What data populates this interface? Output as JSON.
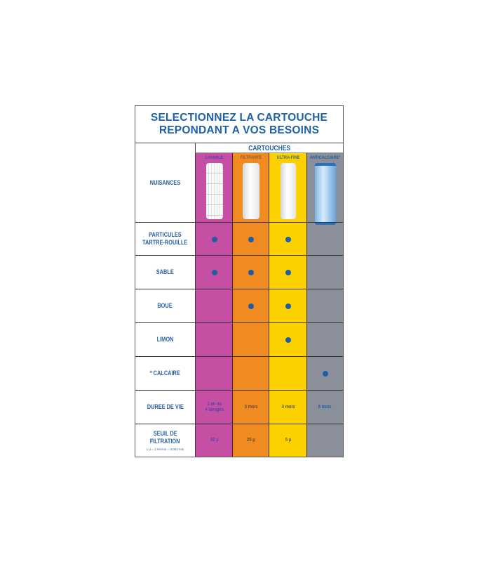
{
  "title": {
    "line1": "SELECTIONNEZ LA CARTOUCHE",
    "line2": "REPONDANT A VOS BESOINS"
  },
  "header": {
    "cartouches_label": "CARTOUCHES",
    "row_label": "NUISANCES",
    "columns": [
      {
        "name": "LAVABLE",
        "color": "#c54fa3",
        "label_color": "#5b3fae",
        "image": "pleated-washable-cartridge"
      },
      {
        "name": "FILTRANTE",
        "color": "#f08b22",
        "label_color": "#8b5a3c",
        "image": "spun-filter-cartridge"
      },
      {
        "name": "ULTRA-FINE",
        "color": "#fdd000",
        "label_color": "#3d6a7a",
        "image": "ultra-fine-cartridge"
      },
      {
        "name": "ANTICALCAIRE*",
        "color": "#8a8f9a",
        "label_color": "#1f5ea3",
        "image": "polyphosphate-crystal-cartridge"
      }
    ]
  },
  "rows": [
    {
      "label": [
        "PARTICULES",
        "TARTRE-ROUILLE"
      ],
      "marks": [
        true,
        true,
        true,
        false
      ]
    },
    {
      "label": [
        "SABLE"
      ],
      "marks": [
        true,
        true,
        true,
        false
      ]
    },
    {
      "label": [
        "BOUE"
      ],
      "marks": [
        false,
        true,
        true,
        false
      ]
    },
    {
      "label": [
        "LIMON"
      ],
      "marks": [
        false,
        false,
        true,
        false
      ]
    },
    {
      "label": [
        "* CALCAIRE"
      ],
      "marks": [
        false,
        false,
        false,
        true
      ]
    }
  ],
  "duree": {
    "label": "DUREE DE VIE",
    "values": [
      "1 an ou\n4 lavages",
      "3 mois",
      "3 mois",
      "6 mois"
    ]
  },
  "seuil": {
    "label_line1": "SEUIL DE",
    "label_line2": "FILTRATION",
    "note": "1 µ = 1 micron = 0,001 mm",
    "values": [
      "50 µ",
      "25 µ",
      "5 µ",
      ""
    ]
  },
  "colors": {
    "text_blue": "#1f62a8",
    "dot": "#1f5ea3",
    "border": "#3a3a3a"
  }
}
